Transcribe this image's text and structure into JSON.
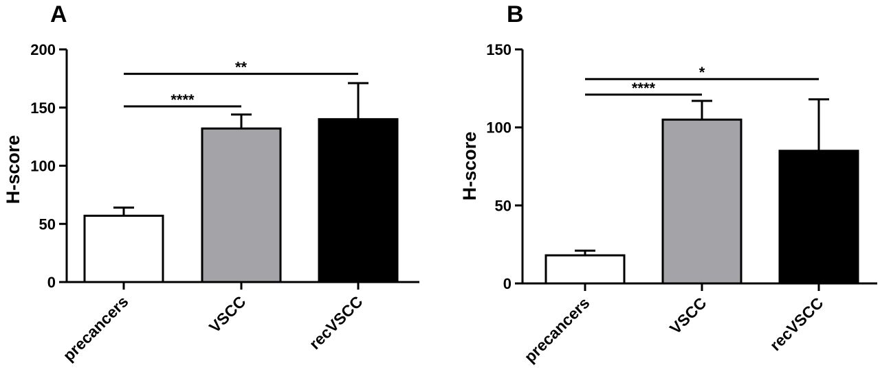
{
  "chart_data": [
    {
      "panel_label": "A",
      "type": "bar",
      "ylabel": "H-score",
      "xlabel": "",
      "ylim": [
        0,
        200
      ],
      "yticks": [
        0,
        50,
        100,
        150,
        200
      ],
      "categories": [
        "precancers",
        "VSCC",
        "recVSCC"
      ],
      "values": [
        57,
        132,
        140
      ],
      "errors": [
        7,
        12,
        31
      ],
      "colors": [
        "#ffffff",
        "#a3a3a8",
        "#000000"
      ],
      "significance": [
        {
          "from": "precancers",
          "to": "VSCC",
          "label": "****",
          "y": 151
        },
        {
          "from": "precancers",
          "to": "recVSCC",
          "label": "**",
          "y": 179
        }
      ]
    },
    {
      "panel_label": "B",
      "type": "bar",
      "ylabel": "H-score",
      "xlabel": "",
      "ylim": [
        0,
        150
      ],
      "yticks": [
        0,
        50,
        100,
        150
      ],
      "categories": [
        "precancers",
        "VSCC",
        "recVSCC"
      ],
      "values": [
        18,
        105,
        85
      ],
      "errors": [
        3,
        12,
        33
      ],
      "colors": [
        "#ffffff",
        "#a3a3a8",
        "#000000"
      ],
      "significance": [
        {
          "from": "precancers",
          "to": "VSCC",
          "label": "****",
          "y": 121
        },
        {
          "from": "precancers",
          "to": "recVSCC",
          "label": "*",
          "y": 131
        }
      ]
    }
  ]
}
